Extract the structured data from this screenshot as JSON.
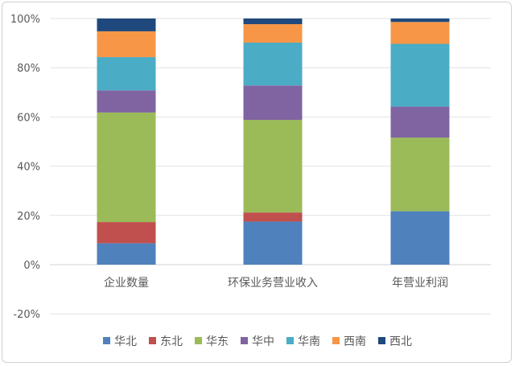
{
  "chart_data": {
    "type": "bar",
    "stacked": true,
    "categories": [
      "企业数量",
      "环保业务营业收入",
      "年营业利润"
    ],
    "series": [
      {
        "name": "华北",
        "color": "#4f81bd",
        "values": [
          8.7,
          17.5,
          21.7
        ]
      },
      {
        "name": "东北",
        "color": "#c0504d",
        "values": [
          8.6,
          3.7,
          0.0
        ]
      },
      {
        "name": "华东",
        "color": "#9bbb59",
        "values": [
          44.5,
          37.6,
          29.9
        ]
      },
      {
        "name": "华中",
        "color": "#8064a2",
        "values": [
          9.0,
          14.0,
          12.6
        ]
      },
      {
        "name": "华南",
        "color": "#4bacc6",
        "values": [
          13.5,
          17.4,
          25.5
        ]
      },
      {
        "name": "西南",
        "color": "#f79646",
        "values": [
          10.5,
          7.5,
          8.9
        ]
      },
      {
        "name": "西北",
        "color": "#1f497d",
        "values": [
          5.2,
          2.3,
          1.4
        ]
      }
    ],
    "yticks": [
      "-20%",
      "0%",
      "20%",
      "40%",
      "60%",
      "80%",
      "100%"
    ],
    "ylim": [
      -20,
      100
    ],
    "unit": "%",
    "grid": true,
    "legend": "bottom"
  }
}
